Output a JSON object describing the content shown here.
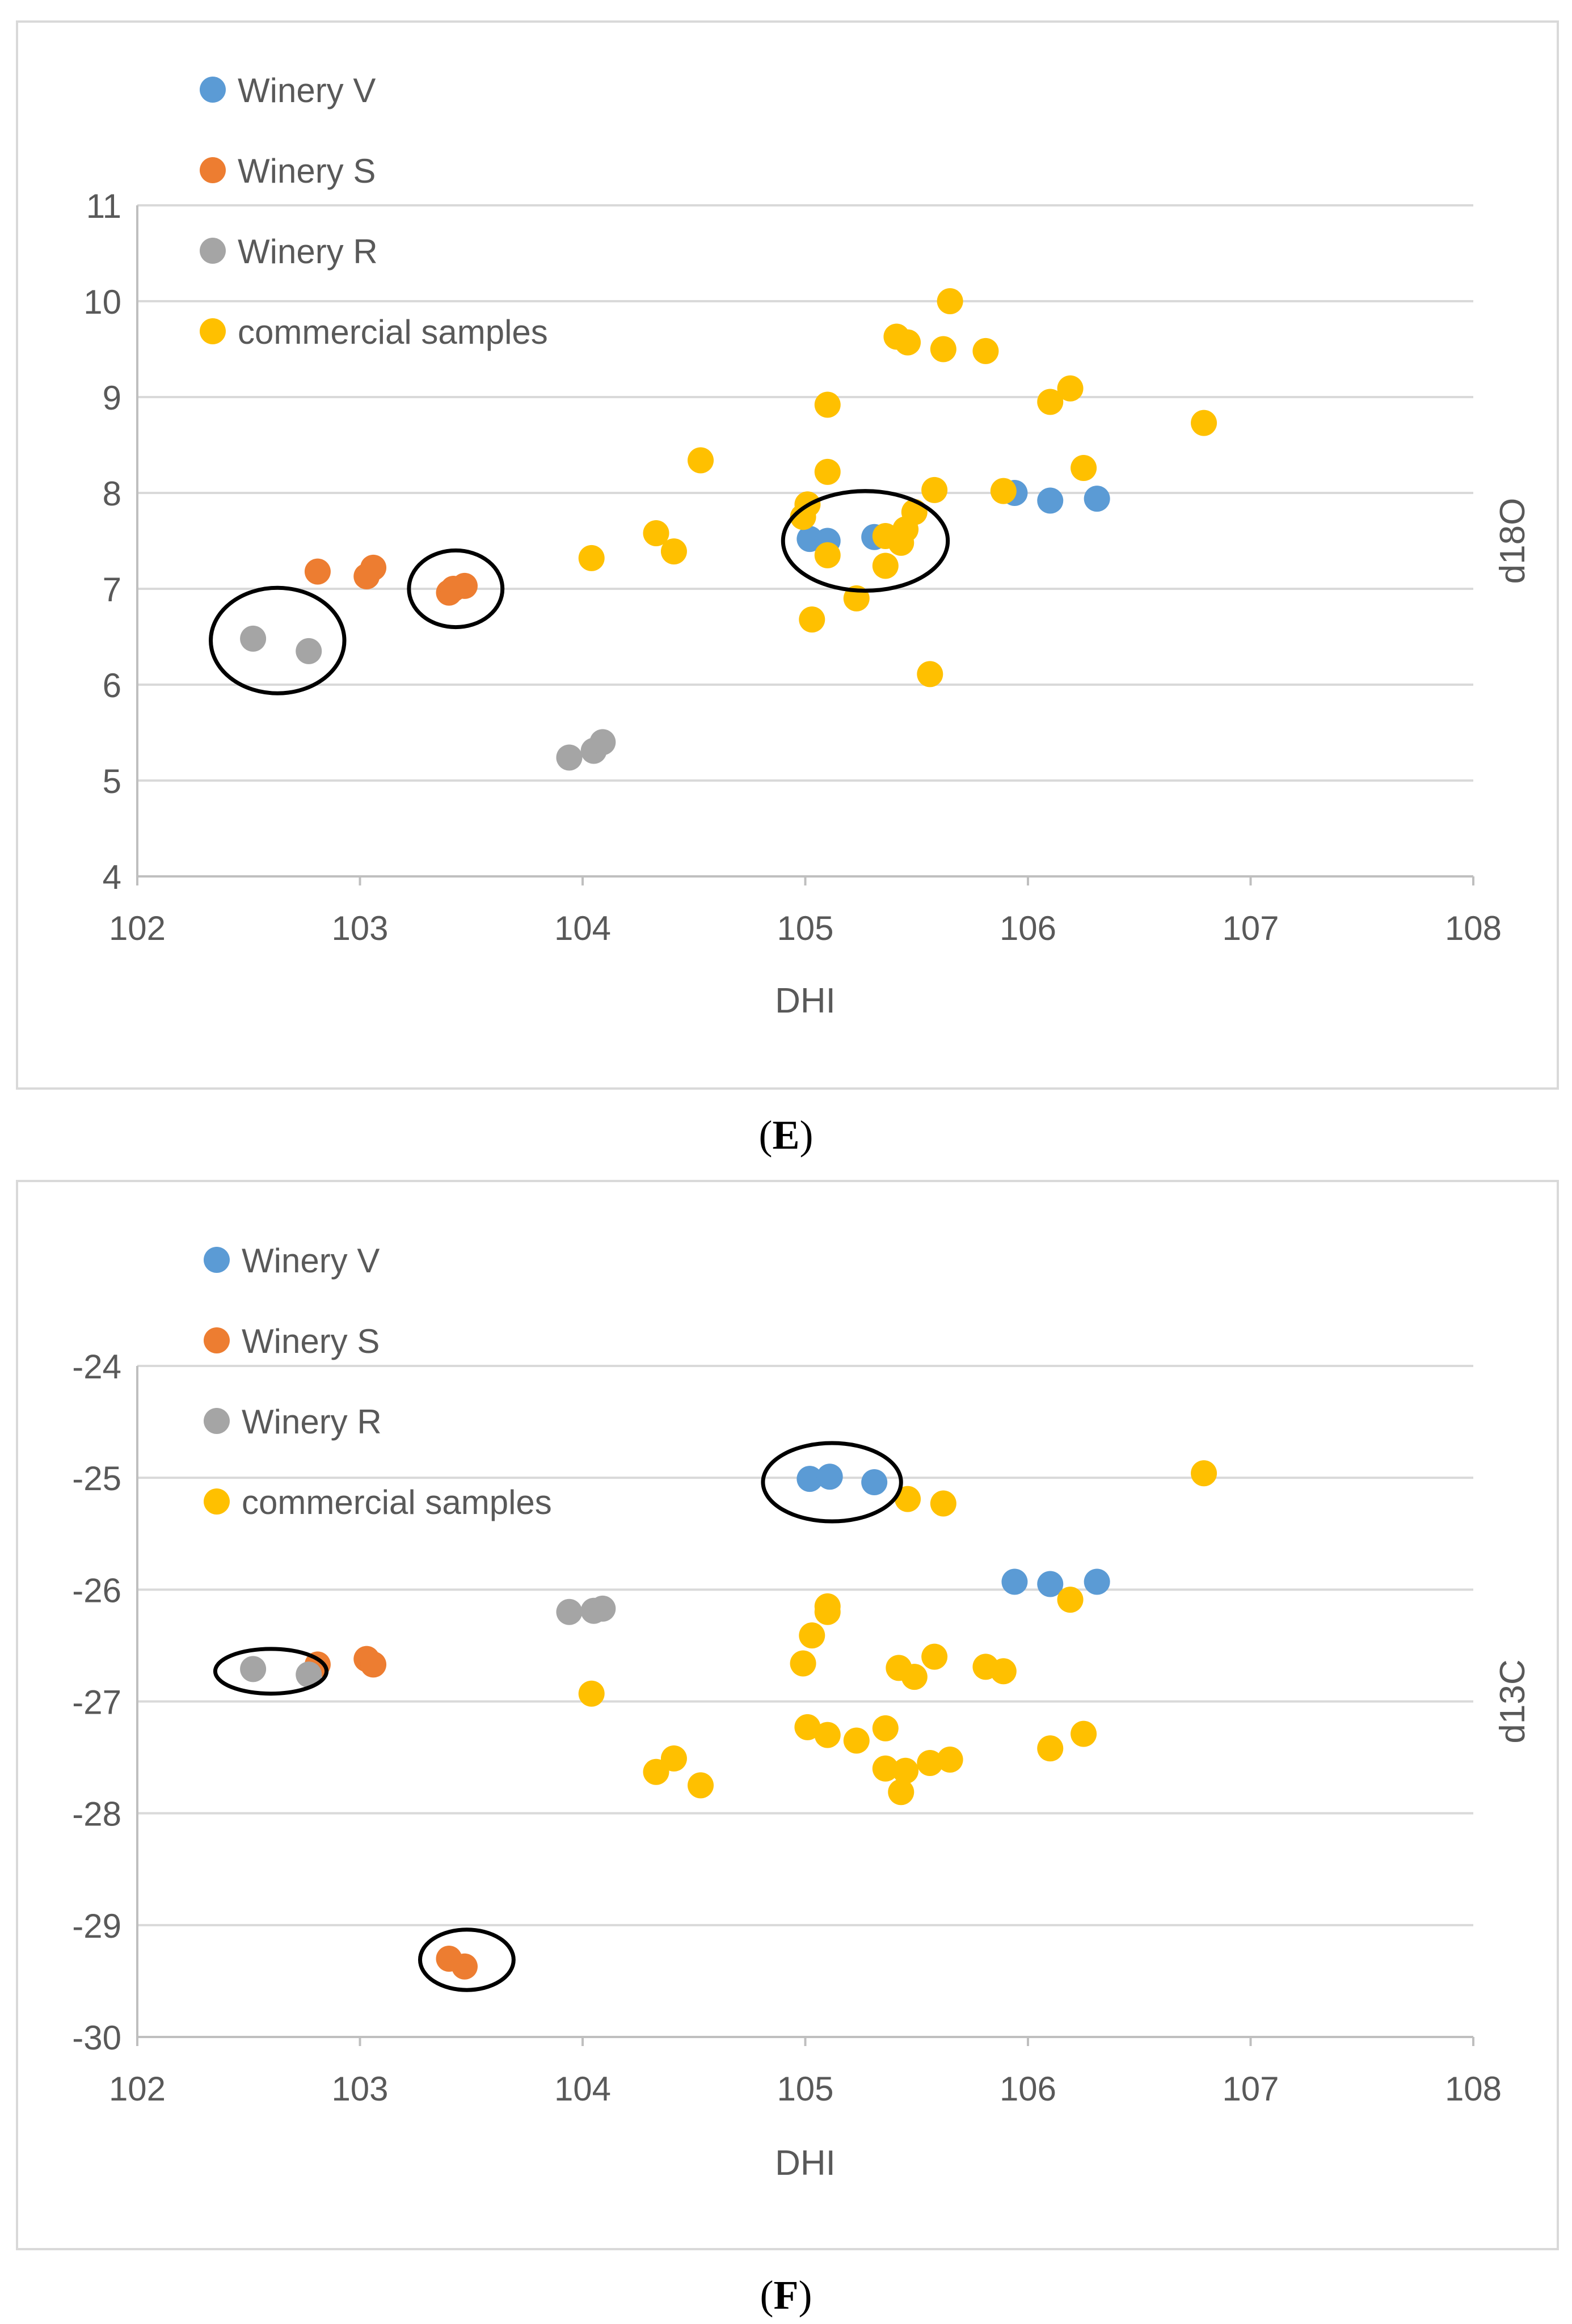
{
  "figure": {
    "caption_E": "E",
    "caption_F": "F",
    "colors": {
      "winery_v": "#5b9bd5",
      "winery_s": "#ed7d31",
      "winery_r": "#a5a5a5",
      "commercial": "#ffc000",
      "grid": "#d9d9d9",
      "axis": "#bfbfbf",
      "text": "#595959",
      "ellipse": "#000000"
    }
  },
  "chart_data": [
    {
      "type": "scatter",
      "panel": "E",
      "title": "",
      "xlabel": "DHI",
      "ylabel": "d18O",
      "xlim": [
        102,
        108
      ],
      "ylim": [
        4,
        11
      ],
      "xticks": [
        102,
        103,
        104,
        105,
        106,
        107,
        108
      ],
      "yticks": [
        4,
        5,
        6,
        7,
        8,
        9,
        10,
        11
      ],
      "grid": "horizontal",
      "legend_position": "top-left",
      "series": [
        {
          "name": "Winery V",
          "color_key": "winery_v",
          "points": [
            [
              105.02,
              7.52
            ],
            [
              105.1,
              7.5
            ],
            [
              105.31,
              7.54
            ],
            [
              105.94,
              8.0
            ],
            [
              106.1,
              7.92
            ],
            [
              106.31,
              7.94
            ]
          ]
        },
        {
          "name": "Winery S",
          "color_key": "winery_s",
          "points": [
            [
              102.81,
              7.18
            ],
            [
              103.03,
              7.13
            ],
            [
              103.06,
              7.22
            ],
            [
              103.4,
              6.96
            ],
            [
              103.42,
              7.0
            ],
            [
              103.47,
              7.03
            ]
          ]
        },
        {
          "name": "Winery R",
          "color_key": "winery_r",
          "points": [
            [
              102.52,
              6.48
            ],
            [
              102.77,
              6.35
            ],
            [
              103.94,
              5.24
            ],
            [
              104.05,
              5.31
            ],
            [
              104.09,
              5.4
            ]
          ]
        },
        {
          "name": "commercial samples",
          "color_key": "commercial",
          "points": [
            [
              104.04,
              7.32
            ],
            [
              104.33,
              7.58
            ],
            [
              104.41,
              7.39
            ],
            [
              104.53,
              8.34
            ],
            [
              104.99,
              7.75
            ],
            [
              105.01,
              7.88
            ],
            [
              105.03,
              6.68
            ],
            [
              105.1,
              8.92
            ],
            [
              105.1,
              8.22
            ],
            [
              105.1,
              7.35
            ],
            [
              105.23,
              6.9
            ],
            [
              105.36,
              7.55
            ],
            [
              105.36,
              7.24
            ],
            [
              105.41,
              9.63
            ],
            [
              105.43,
              7.48
            ],
            [
              105.45,
              7.62
            ],
            [
              105.46,
              9.57
            ],
            [
              105.49,
              7.8
            ],
            [
              105.56,
              6.11
            ],
            [
              105.58,
              8.03
            ],
            [
              105.62,
              9.5
            ],
            [
              105.65,
              10.0
            ],
            [
              105.81,
              9.48
            ],
            [
              105.89,
              8.02
            ],
            [
              106.1,
              8.95
            ],
            [
              106.19,
              9.09
            ],
            [
              106.25,
              8.26
            ],
            [
              106.79,
              8.73
            ]
          ]
        }
      ],
      "annotations": [
        {
          "type": "ellipse",
          "center": [
            102.63,
            6.46
          ],
          "radius_x": 0.3,
          "radius_y": 0.55,
          "label": ""
        },
        {
          "type": "ellipse",
          "center": [
            103.43,
            7.0
          ],
          "radius_x": 0.21,
          "radius_y": 0.4,
          "label": ""
        },
        {
          "type": "ellipse",
          "center": [
            105.27,
            7.5
          ],
          "radius_x": 0.37,
          "radius_y": 0.52,
          "label": ""
        }
      ]
    },
    {
      "type": "scatter",
      "panel": "F",
      "title": "",
      "xlabel": "DHI",
      "ylabel": "d13C",
      "xlim": [
        102,
        108
      ],
      "ylim": [
        -30,
        -24
      ],
      "xticks": [
        102,
        103,
        104,
        105,
        106,
        107,
        108
      ],
      "yticks": [
        -30,
        -29,
        -28,
        -27,
        -26,
        -25,
        -24
      ],
      "grid": "horizontal",
      "legend_position": "top-left",
      "series": [
        {
          "name": "Winery V",
          "color_key": "winery_v",
          "points": [
            [
              105.02,
              -25.01
            ],
            [
              105.11,
              -24.99
            ],
            [
              105.31,
              -25.04
            ],
            [
              105.94,
              -25.93
            ],
            [
              106.1,
              -25.95
            ],
            [
              106.31,
              -25.93
            ]
          ]
        },
        {
          "name": "Winery S",
          "color_key": "winery_s",
          "points": [
            [
              102.81,
              -26.67
            ],
            [
              103.03,
              -26.62
            ],
            [
              103.06,
              -26.67
            ],
            [
              103.4,
              -29.3
            ],
            [
              103.47,
              -29.37
            ]
          ]
        },
        {
          "name": "Winery R",
          "color_key": "winery_r",
          "points": [
            [
              102.52,
              -26.71
            ],
            [
              102.77,
              -26.76
            ],
            [
              103.94,
              -26.2
            ],
            [
              104.05,
              -26.19
            ],
            [
              104.09,
              -26.17
            ]
          ]
        },
        {
          "name": "commercial samples",
          "color_key": "commercial",
          "points": [
            [
              104.04,
              -26.93
            ],
            [
              104.33,
              -27.63
            ],
            [
              104.41,
              -27.51
            ],
            [
              104.53,
              -27.75
            ],
            [
              104.99,
              -26.66
            ],
            [
              105.01,
              -27.23
            ],
            [
              105.03,
              -26.41
            ],
            [
              105.1,
              -26.15
            ],
            [
              105.1,
              -26.2
            ],
            [
              105.1,
              -27.3
            ],
            [
              105.23,
              -27.35
            ],
            [
              105.36,
              -27.24
            ],
            [
              105.36,
              -27.6
            ],
            [
              105.42,
              -26.7
            ],
            [
              105.43,
              -27.81
            ],
            [
              105.45,
              -27.62
            ],
            [
              105.46,
              -25.19
            ],
            [
              105.49,
              -26.78
            ],
            [
              105.56,
              -27.55
            ],
            [
              105.58,
              -26.6
            ],
            [
              105.62,
              -25.23
            ],
            [
              105.65,
              -27.52
            ],
            [
              105.81,
              -26.69
            ],
            [
              105.89,
              -26.73
            ],
            [
              106.1,
              -27.42
            ],
            [
              106.19,
              -26.09
            ],
            [
              106.25,
              -27.29
            ],
            [
              106.79,
              -24.96
            ]
          ]
        }
      ],
      "annotations": [
        {
          "type": "ellipse",
          "center": [
            103.48,
            -29.31
          ],
          "radius_x": 0.21,
          "radius_y": 0.27,
          "label": ""
        },
        {
          "type": "ellipse",
          "center": [
            102.6,
            -26.73
          ],
          "radius_x": 0.25,
          "radius_y": 0.2,
          "label": ""
        },
        {
          "type": "ellipse",
          "center": [
            105.12,
            -25.04
          ],
          "radius_x": 0.31,
          "radius_y": 0.35,
          "label": ""
        }
      ]
    }
  ]
}
